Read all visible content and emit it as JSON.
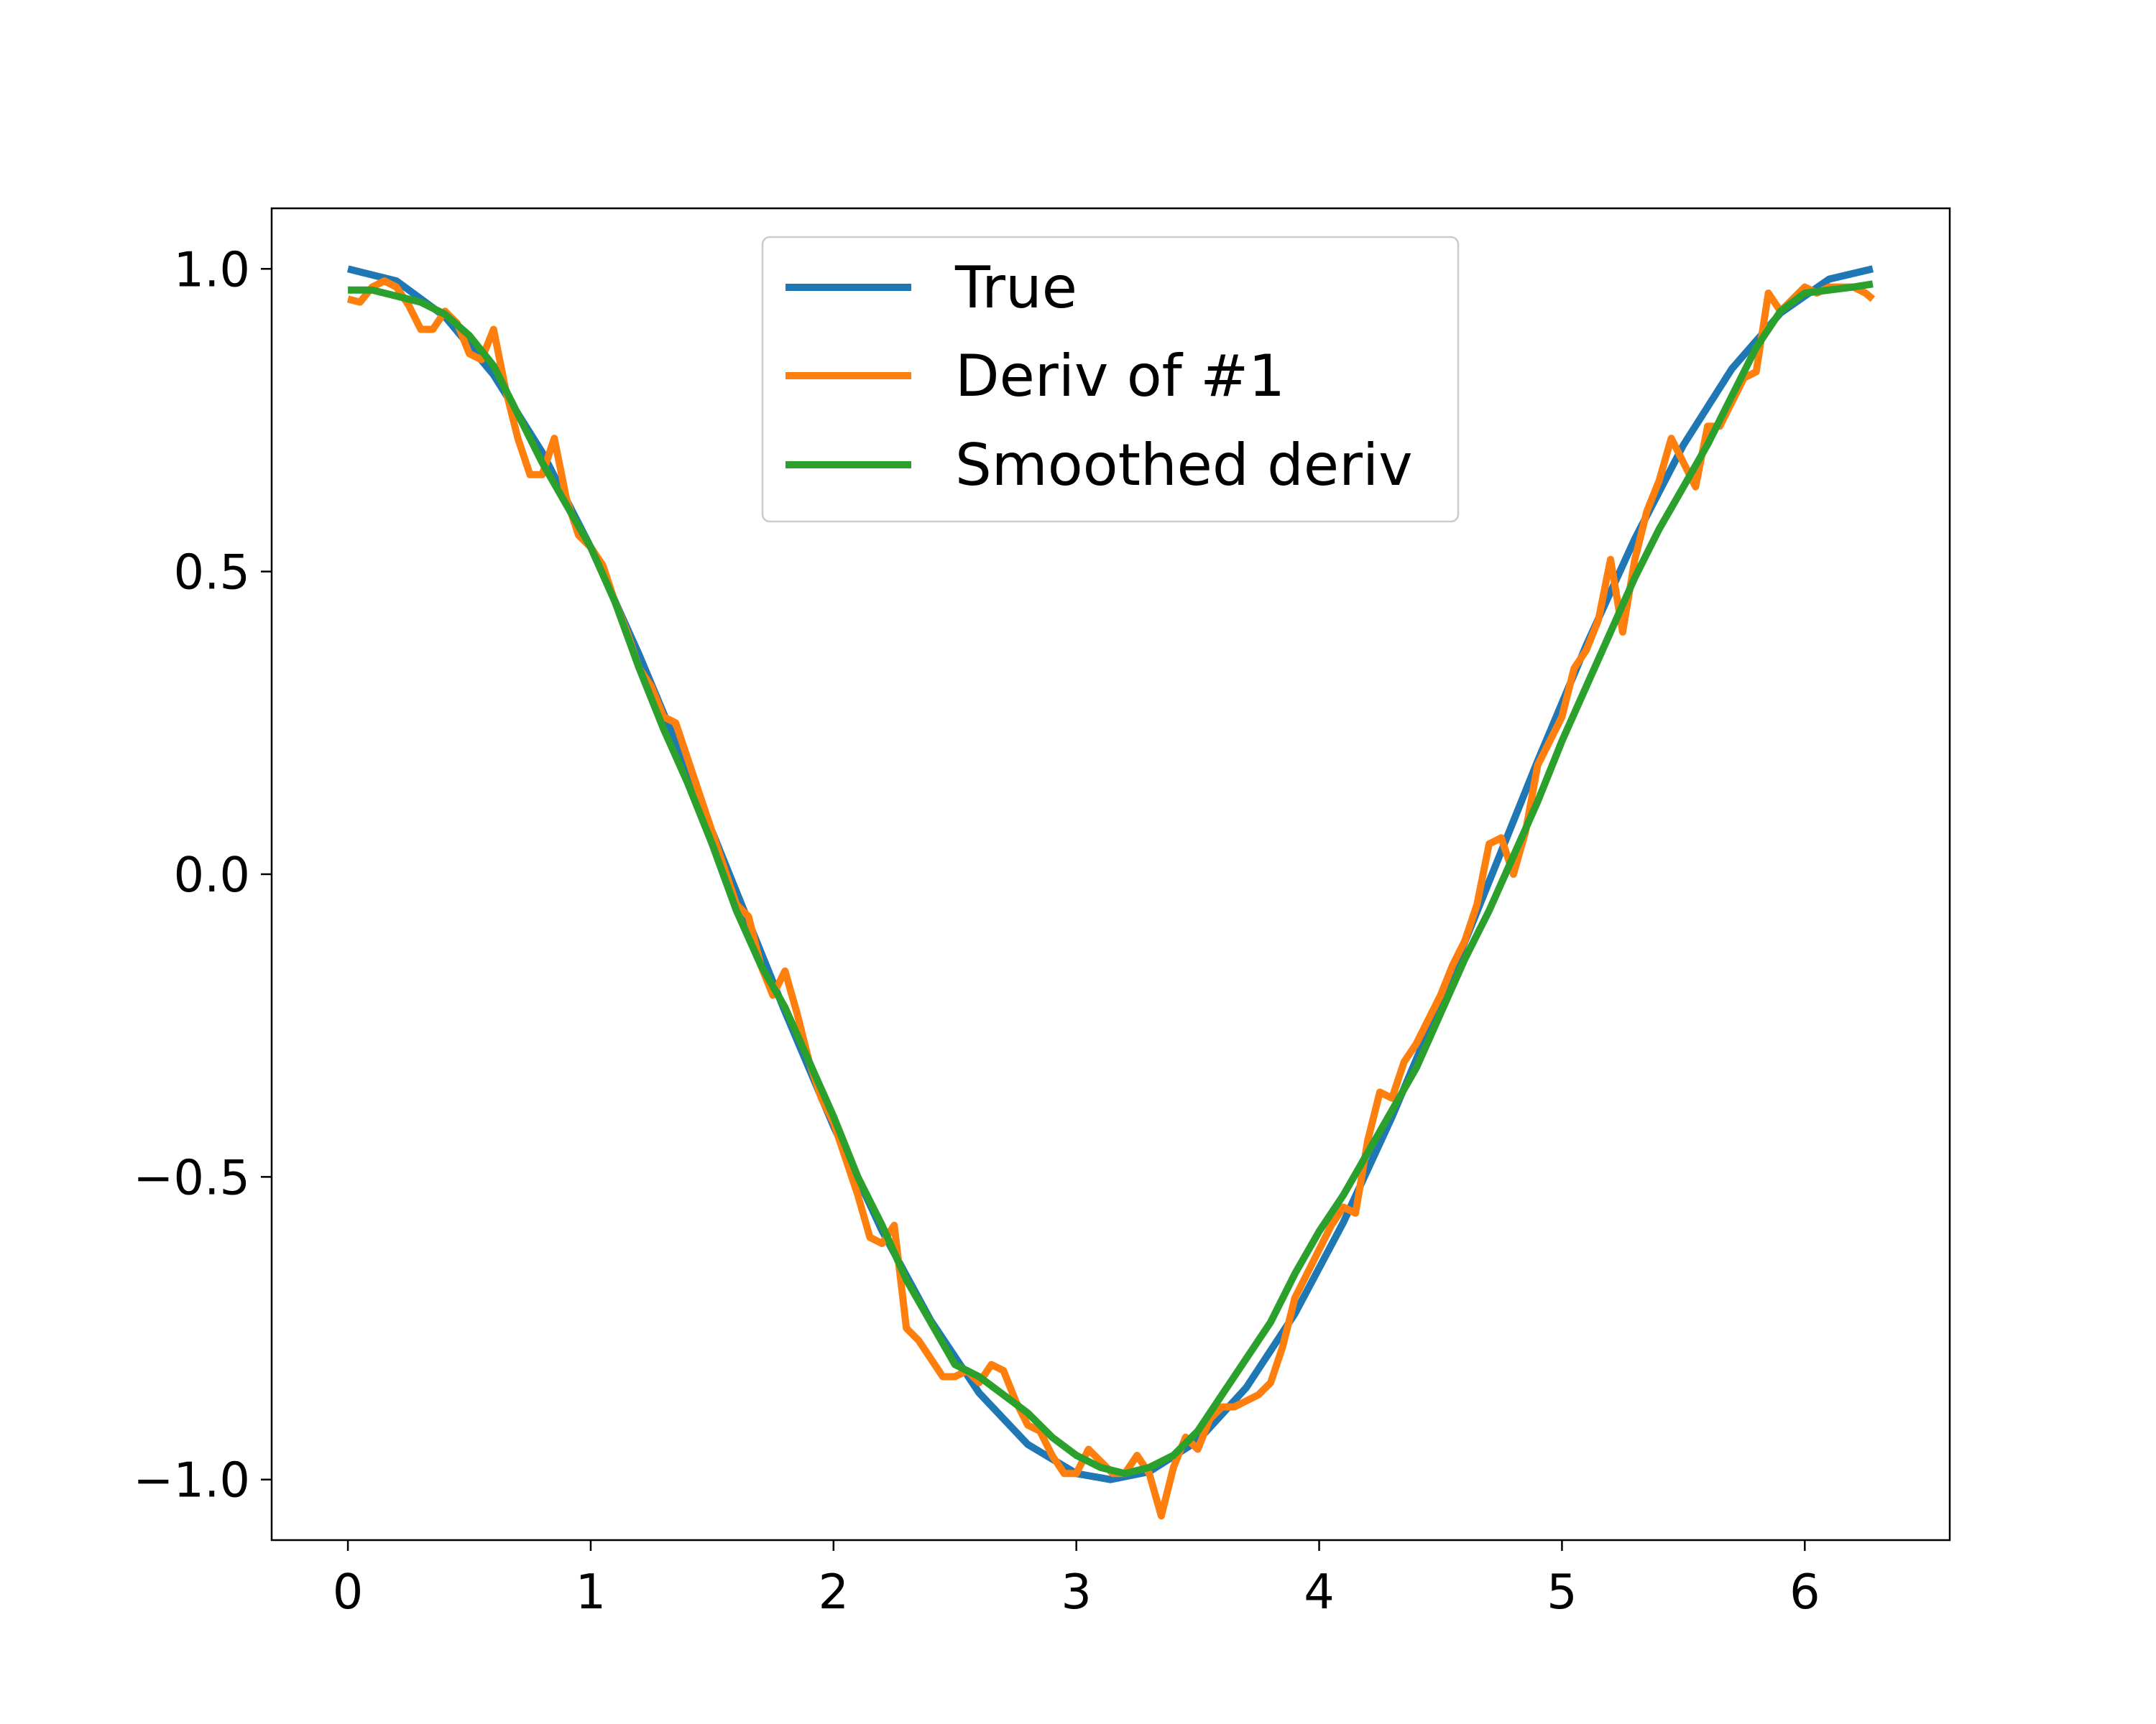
{
  "chart_data": {
    "type": "line",
    "title": "",
    "xlabel": "",
    "ylabel": "",
    "xlim": [
      -0.314,
      6.597
    ],
    "ylim": [
      -1.1,
      1.1
    ],
    "xticks": [
      0,
      1,
      2,
      3,
      4,
      5,
      6
    ],
    "yticks": [
      1.0,
      0.5,
      0.0,
      -0.5,
      -1.0
    ],
    "xtick_labels": [
      "0",
      "1",
      "2",
      "3",
      "4",
      "5",
      "6"
    ],
    "ytick_labels": [
      "1.0",
      "0.5",
      "0.0",
      "−0.5",
      "−1.0"
    ],
    "grid": false,
    "legend_position": "upper center",
    "series": [
      {
        "name": "True",
        "color": "#1f77b4",
        "x": [
          0,
          0.2,
          0.4,
          0.6,
          0.8,
          1.0,
          1.2,
          1.4,
          1.6,
          1.8,
          2.0,
          2.2,
          2.4,
          2.6,
          2.8,
          3.0,
          3.14,
          3.3,
          3.5,
          3.7,
          3.9,
          4.1,
          4.3,
          4.5,
          4.7,
          4.9,
          5.1,
          5.3,
          5.5,
          5.7,
          5.9,
          6.1,
          6.28
        ],
        "y": [
          1.0,
          0.98,
          0.921,
          0.825,
          0.697,
          0.54,
          0.362,
          0.17,
          -0.029,
          -0.227,
          -0.416,
          -0.589,
          -0.737,
          -0.857,
          -0.942,
          -0.99,
          -1.0,
          -0.987,
          -0.936,
          -0.848,
          -0.726,
          -0.575,
          -0.401,
          -0.211,
          -0.012,
          0.187,
          0.378,
          0.554,
          0.709,
          0.835,
          0.927,
          0.983,
          1.0
        ]
      },
      {
        "name": "Deriv of #1",
        "color": "#ff7f0e",
        "x": [
          0,
          0.05,
          0.1,
          0.15,
          0.2,
          0.25,
          0.3,
          0.35,
          0.4,
          0.45,
          0.5,
          0.55,
          0.6,
          0.65,
          0.7,
          0.75,
          0.8,
          0.85,
          0.9,
          0.95,
          1.0,
          1.05,
          1.1,
          1.15,
          1.2,
          1.25,
          1.3,
          1.35,
          1.4,
          1.45,
          1.5,
          1.55,
          1.6,
          1.65,
          1.7,
          1.75,
          1.8,
          1.85,
          1.9,
          1.95,
          2.0,
          2.05,
          2.1,
          2.15,
          2.2,
          2.25,
          2.3,
          2.35,
          2.4,
          2.45,
          2.5,
          2.55,
          2.6,
          2.65,
          2.7,
          2.75,
          2.8,
          2.85,
          2.9,
          2.95,
          3.0,
          3.05,
          3.1,
          3.15,
          3.2,
          3.25,
          3.3,
          3.35,
          3.4,
          3.45,
          3.5,
          3.55,
          3.6,
          3.65,
          3.7,
          3.75,
          3.8,
          3.85,
          3.9,
          3.95,
          4.0,
          4.05,
          4.1,
          4.15,
          4.2,
          4.25,
          4.3,
          4.35,
          4.4,
          4.45,
          4.5,
          4.55,
          4.6,
          4.65,
          4.7,
          4.75,
          4.8,
          4.85,
          4.9,
          4.95,
          5.0,
          5.05,
          5.1,
          5.15,
          5.2,
          5.25,
          5.3,
          5.35,
          5.4,
          5.45,
          5.5,
          5.55,
          5.6,
          5.65,
          5.7,
          5.75,
          5.8,
          5.85,
          5.9,
          5.95,
          6.0,
          6.05,
          6.1,
          6.15,
          6.2,
          6.25,
          6.28
        ],
        "y": [
          0.95,
          0.945,
          0.97,
          0.98,
          0.97,
          0.94,
          0.9,
          0.9,
          0.93,
          0.91,
          0.86,
          0.85,
          0.9,
          0.8,
          0.72,
          0.66,
          0.66,
          0.72,
          0.62,
          0.56,
          0.54,
          0.51,
          0.45,
          0.4,
          0.34,
          0.31,
          0.26,
          0.25,
          0.19,
          0.13,
          0.07,
          0.01,
          -0.05,
          -0.07,
          -0.15,
          -0.2,
          -0.16,
          -0.23,
          -0.31,
          -0.37,
          -0.41,
          -0.47,
          -0.53,
          -0.6,
          -0.61,
          -0.58,
          -0.75,
          -0.77,
          -0.8,
          -0.83,
          -0.83,
          -0.82,
          -0.84,
          -0.81,
          -0.82,
          -0.87,
          -0.91,
          -0.92,
          -0.96,
          -0.99,
          -0.99,
          -0.95,
          -0.97,
          -0.99,
          -0.99,
          -0.96,
          -0.99,
          -1.06,
          -0.98,
          -0.93,
          -0.95,
          -0.9,
          -0.88,
          -0.88,
          -0.87,
          -0.86,
          -0.84,
          -0.78,
          -0.7,
          -0.66,
          -0.62,
          -0.58,
          -0.55,
          -0.56,
          -0.44,
          -0.36,
          -0.37,
          -0.31,
          -0.28,
          -0.24,
          -0.2,
          -0.15,
          -0.11,
          -0.05,
          0.05,
          0.06,
          0.0,
          0.07,
          0.18,
          0.22,
          0.26,
          0.34,
          0.37,
          0.42,
          0.52,
          0.4,
          0.52,
          0.6,
          0.65,
          0.72,
          0.68,
          0.64,
          0.74,
          0.74,
          0.78,
          0.82,
          0.83,
          0.96,
          0.93,
          0.95,
          0.97,
          0.96,
          0.97,
          0.97,
          0.97,
          0.96,
          0.95
        ]
      },
      {
        "name": "Smoothed deriv",
        "color": "#2ca02c",
        "x": [
          0,
          0.1,
          0.2,
          0.3,
          0.4,
          0.5,
          0.6,
          0.7,
          0.8,
          0.9,
          1.0,
          1.1,
          1.2,
          1.3,
          1.4,
          1.5,
          1.6,
          1.7,
          1.8,
          1.9,
          2.0,
          2.1,
          2.2,
          2.3,
          2.4,
          2.5,
          2.6,
          2.7,
          2.8,
          2.9,
          3.0,
          3.1,
          3.2,
          3.3,
          3.4,
          3.5,
          3.6,
          3.7,
          3.8,
          3.9,
          4.0,
          4.1,
          4.2,
          4.3,
          4.4,
          4.5,
          4.6,
          4.7,
          4.8,
          4.9,
          5.0,
          5.1,
          5.2,
          5.3,
          5.4,
          5.5,
          5.6,
          5.7,
          5.8,
          5.9,
          6.0,
          6.1,
          6.2,
          6.28
        ],
        "y": [
          0.965,
          0.965,
          0.955,
          0.945,
          0.925,
          0.89,
          0.84,
          0.76,
          0.68,
          0.61,
          0.54,
          0.45,
          0.34,
          0.24,
          0.15,
          0.05,
          -0.06,
          -0.15,
          -0.22,
          -0.31,
          -0.4,
          -0.5,
          -0.58,
          -0.67,
          -0.74,
          -0.81,
          -0.83,
          -0.86,
          -0.89,
          -0.93,
          -0.96,
          -0.98,
          -0.99,
          -0.98,
          -0.96,
          -0.92,
          -0.86,
          -0.8,
          -0.74,
          -0.66,
          -0.59,
          -0.53,
          -0.46,
          -0.39,
          -0.32,
          -0.23,
          -0.14,
          -0.06,
          0.03,
          0.12,
          0.22,
          0.31,
          0.4,
          0.49,
          0.57,
          0.64,
          0.71,
          0.79,
          0.87,
          0.93,
          0.96,
          0.965,
          0.97,
          0.975
        ]
      }
    ]
  }
}
